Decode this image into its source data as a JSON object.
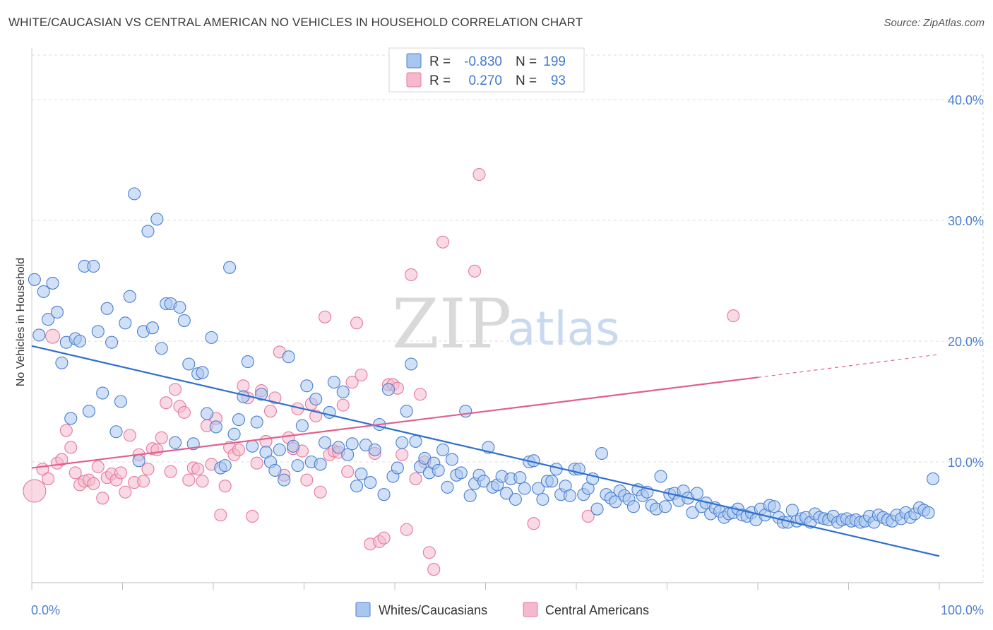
{
  "header": {
    "title": "WHITE/CAUCASIAN VS CENTRAL AMERICAN NO VEHICLES IN HOUSEHOLD CORRELATION CHART",
    "source": "Source: ZipAtlas.com"
  },
  "watermark": {
    "zip": "ZIP",
    "atlas": "atlas"
  },
  "colors": {
    "blue": "#4a7fd0",
    "blue_fill": "#a9c6ef",
    "blue_line": "#2f6fcf",
    "pink": "#e8789c",
    "pink_fill": "#f4b9cc",
    "pink_line": "#e0608c",
    "grid": "#dddddd"
  },
  "legend": {
    "rows": [
      {
        "r_label": "R =",
        "r_value": "-0.830",
        "n_label": "N =",
        "n_value": "199",
        "color": "blue"
      },
      {
        "r_label": "R =",
        "r_value": "0.270",
        "n_label": "N =",
        "n_value": "93",
        "color": "pink"
      }
    ]
  },
  "bottom_legend": [
    {
      "label": "Whites/Caucasians",
      "color": "blue"
    },
    {
      "label": "Central Americans",
      "color": "pink"
    }
  ],
  "chart_data": {
    "type": "scatter",
    "title": "WHITE/CAUCASIAN VS CENTRAL AMERICAN NO VEHICLES IN HOUSEHOLD CORRELATION CHART",
    "xlabel": "",
    "ylabel": "No Vehicles in Household",
    "xlim": [
      0,
      100
    ],
    "ylim": [
      0,
      42
    ],
    "x_tick_labels": [
      "0.0%",
      "100.0%"
    ],
    "y_ticks": [
      10,
      20,
      30,
      40
    ],
    "y_tick_labels": [
      "10.0%",
      "20.0%",
      "30.0%",
      "40.0%"
    ],
    "grid": true,
    "legend_position": "top-center",
    "series": [
      {
        "name": "Whites/Caucasians",
        "r": -0.83,
        "n": 199,
        "trend": {
          "x0": 0,
          "y0": 19.6,
          "x1": 100,
          "y1": 2.2
        },
        "points": [
          [
            0.3,
            25.1
          ],
          [
            0.8,
            20.5
          ],
          [
            1.3,
            24.1
          ],
          [
            1.8,
            21.8
          ],
          [
            2.3,
            24.8
          ],
          [
            2.8,
            22.4
          ],
          [
            3.3,
            18.2
          ],
          [
            3.8,
            19.9
          ],
          [
            4.3,
            13.6
          ],
          [
            4.8,
            20.2
          ],
          [
            5.3,
            20.0
          ],
          [
            5.8,
            26.2
          ],
          [
            6.3,
            14.2
          ],
          [
            6.8,
            26.2
          ],
          [
            7.3,
            20.8
          ],
          [
            7.8,
            15.7
          ],
          [
            8.3,
            22.7
          ],
          [
            8.8,
            19.9
          ],
          [
            9.3,
            12.5
          ],
          [
            9.8,
            15.0
          ],
          [
            10.3,
            21.5
          ],
          [
            10.8,
            23.7
          ],
          [
            11.3,
            32.2
          ],
          [
            11.8,
            10.1
          ],
          [
            12.3,
            20.8
          ],
          [
            12.8,
            29.1
          ],
          [
            13.3,
            21.1
          ],
          [
            13.8,
            30.1
          ],
          [
            14.3,
            19.4
          ],
          [
            14.8,
            23.1
          ],
          [
            15.3,
            23.1
          ],
          [
            15.8,
            11.6
          ],
          [
            16.3,
            22.8
          ],
          [
            16.8,
            21.7
          ],
          [
            17.3,
            18.1
          ],
          [
            17.8,
            11.5
          ],
          [
            18.3,
            17.3
          ],
          [
            18.8,
            17.4
          ],
          [
            19.3,
            14.0
          ],
          [
            19.8,
            20.3
          ],
          [
            20.3,
            12.9
          ],
          [
            20.8,
            9.5
          ],
          [
            21.3,
            9.7
          ],
          [
            21.8,
            26.1
          ],
          [
            22.3,
            12.3
          ],
          [
            22.8,
            13.5
          ],
          [
            23.3,
            15.4
          ],
          [
            23.8,
            18.3
          ],
          [
            24.3,
            11.3
          ],
          [
            24.8,
            13.3
          ],
          [
            25.3,
            15.6
          ],
          [
            25.8,
            10.8
          ],
          [
            26.3,
            10.0
          ],
          [
            26.8,
            9.3
          ],
          [
            27.3,
            11.0
          ],
          [
            27.8,
            8.5
          ],
          [
            28.3,
            18.7
          ],
          [
            28.8,
            11.3
          ],
          [
            29.3,
            9.7
          ],
          [
            29.8,
            13.0
          ],
          [
            30.3,
            16.3
          ],
          [
            30.8,
            10.0
          ],
          [
            31.3,
            15.2
          ],
          [
            31.8,
            9.8
          ],
          [
            32.3,
            11.6
          ],
          [
            32.8,
            14.1
          ],
          [
            33.3,
            16.6
          ],
          [
            33.8,
            11.2
          ],
          [
            34.3,
            15.8
          ],
          [
            34.8,
            10.6
          ],
          [
            35.3,
            11.5
          ],
          [
            35.8,
            8.0
          ],
          [
            36.3,
            9.0
          ],
          [
            36.8,
            11.4
          ],
          [
            37.3,
            8.3
          ],
          [
            37.8,
            11.0
          ],
          [
            38.3,
            13.1
          ],
          [
            38.8,
            7.3
          ],
          [
            39.3,
            16.0
          ],
          [
            39.8,
            8.8
          ],
          [
            40.3,
            9.5
          ],
          [
            40.8,
            11.6
          ],
          [
            41.3,
            14.2
          ],
          [
            41.8,
            18.1
          ],
          [
            42.3,
            11.7
          ],
          [
            42.8,
            9.6
          ],
          [
            43.3,
            10.3
          ],
          [
            43.8,
            9.1
          ],
          [
            44.3,
            9.9
          ],
          [
            44.8,
            9.3
          ],
          [
            45.3,
            11.0
          ],
          [
            45.8,
            7.9
          ],
          [
            46.3,
            10.2
          ],
          [
            46.8,
            8.9
          ],
          [
            47.3,
            9.1
          ],
          [
            47.8,
            14.2
          ],
          [
            48.3,
            7.2
          ],
          [
            48.8,
            8.2
          ],
          [
            49.3,
            8.9
          ],
          [
            49.8,
            8.4
          ],
          [
            50.3,
            11.2
          ],
          [
            50.8,
            7.9
          ],
          [
            51.3,
            8.1
          ],
          [
            51.8,
            8.8
          ],
          [
            52.3,
            7.4
          ],
          [
            52.8,
            8.6
          ],
          [
            53.3,
            6.9
          ],
          [
            53.8,
            8.7
          ],
          [
            54.3,
            7.8
          ],
          [
            54.8,
            10.0
          ],
          [
            55.3,
            10.1
          ],
          [
            55.8,
            7.8
          ],
          [
            56.3,
            6.9
          ],
          [
            56.8,
            8.4
          ],
          [
            57.3,
            8.4
          ],
          [
            57.8,
            9.4
          ],
          [
            58.3,
            7.3
          ],
          [
            58.8,
            8.0
          ],
          [
            59.3,
            7.2
          ],
          [
            59.8,
            9.4
          ],
          [
            60.3,
            9.4
          ],
          [
            60.8,
            7.3
          ],
          [
            61.3,
            7.8
          ],
          [
            61.8,
            8.6
          ],
          [
            62.3,
            6.1
          ],
          [
            62.8,
            10.7
          ],
          [
            63.3,
            7.3
          ],
          [
            63.8,
            7.0
          ],
          [
            64.3,
            6.7
          ],
          [
            64.8,
            7.6
          ],
          [
            65.3,
            7.2
          ],
          [
            65.8,
            6.9
          ],
          [
            66.3,
            6.3
          ],
          [
            66.8,
            7.7
          ],
          [
            67.3,
            7.2
          ],
          [
            67.8,
            7.5
          ],
          [
            68.3,
            6.4
          ],
          [
            68.8,
            6.1
          ],
          [
            69.3,
            8.8
          ],
          [
            69.8,
            6.3
          ],
          [
            70.3,
            7.3
          ],
          [
            70.8,
            7.4
          ],
          [
            71.3,
            6.8
          ],
          [
            71.8,
            7.6
          ],
          [
            72.3,
            7.0
          ],
          [
            72.8,
            5.8
          ],
          [
            73.3,
            7.4
          ],
          [
            73.8,
            6.3
          ],
          [
            74.3,
            6.6
          ],
          [
            74.8,
            5.7
          ],
          [
            75.3,
            6.2
          ],
          [
            75.8,
            5.9
          ],
          [
            76.3,
            5.4
          ],
          [
            76.8,
            5.7
          ],
          [
            77.3,
            5.8
          ],
          [
            77.8,
            6.1
          ],
          [
            78.3,
            5.6
          ],
          [
            78.8,
            5.5
          ],
          [
            79.3,
            5.8
          ],
          [
            79.8,
            5.2
          ],
          [
            80.3,
            6.1
          ],
          [
            80.8,
            5.6
          ],
          [
            81.3,
            6.4
          ],
          [
            81.8,
            6.3
          ],
          [
            82.3,
            5.4
          ],
          [
            82.8,
            5.0
          ],
          [
            83.3,
            5.0
          ],
          [
            83.8,
            6.0
          ],
          [
            84.3,
            5.1
          ],
          [
            84.8,
            5.3
          ],
          [
            85.3,
            5.4
          ],
          [
            85.8,
            5.0
          ],
          [
            86.3,
            5.7
          ],
          [
            86.8,
            5.4
          ],
          [
            87.3,
            5.3
          ],
          [
            87.8,
            5.2
          ],
          [
            88.3,
            5.5
          ],
          [
            88.8,
            5.0
          ],
          [
            89.3,
            5.2
          ],
          [
            89.8,
            5.3
          ],
          [
            90.3,
            5.1
          ],
          [
            90.8,
            5.2
          ],
          [
            91.3,
            5.0
          ],
          [
            91.8,
            5.1
          ],
          [
            92.3,
            5.5
          ],
          [
            92.8,
            5.0
          ],
          [
            93.3,
            5.6
          ],
          [
            93.8,
            5.4
          ],
          [
            94.3,
            5.2
          ],
          [
            94.8,
            5.1
          ],
          [
            95.3,
            5.6
          ],
          [
            95.8,
            5.3
          ],
          [
            96.3,
            5.8
          ],
          [
            96.8,
            5.4
          ],
          [
            97.3,
            5.7
          ],
          [
            97.8,
            6.2
          ],
          [
            98.3,
            6.0
          ],
          [
            98.8,
            5.8
          ],
          [
            99.3,
            8.6
          ]
        ]
      },
      {
        "name": "Central Americans",
        "r": 0.27,
        "n": 93,
        "trend": {
          "x0": 0,
          "y0": 9.5,
          "x1": 80,
          "y1": 17.0,
          "dash_x1": 100,
          "dash_y1": 18.9
        },
        "points": [
          [
            0.3,
            7.6
          ],
          [
            1.2,
            9.4
          ],
          [
            1.8,
            8.6
          ],
          [
            2.3,
            20.4
          ],
          [
            2.8,
            9.9
          ],
          [
            3.3,
            10.2
          ],
          [
            3.8,
            12.6
          ],
          [
            4.3,
            11.2
          ],
          [
            4.8,
            9.1
          ],
          [
            5.3,
            8.1
          ],
          [
            5.8,
            8.4
          ],
          [
            6.3,
            8.5
          ],
          [
            6.8,
            8.2
          ],
          [
            7.3,
            9.6
          ],
          [
            7.8,
            7.0
          ],
          [
            8.3,
            8.7
          ],
          [
            8.8,
            9.0
          ],
          [
            9.3,
            8.5
          ],
          [
            9.8,
            9.1
          ],
          [
            10.3,
            7.5
          ],
          [
            10.8,
            12.2
          ],
          [
            11.3,
            8.3
          ],
          [
            11.8,
            10.6
          ],
          [
            12.3,
            8.4
          ],
          [
            12.8,
            9.4
          ],
          [
            13.3,
            11.1
          ],
          [
            13.8,
            11.0
          ],
          [
            14.3,
            12.0
          ],
          [
            14.8,
            14.9
          ],
          [
            15.3,
            9.2
          ],
          [
            15.8,
            16.0
          ],
          [
            16.3,
            14.6
          ],
          [
            16.8,
            14.1
          ],
          [
            17.3,
            8.5
          ],
          [
            17.8,
            9.5
          ],
          [
            18.3,
            9.4
          ],
          [
            18.8,
            8.4
          ],
          [
            19.3,
            13.0
          ],
          [
            19.8,
            9.8
          ],
          [
            20.3,
            13.6
          ],
          [
            20.8,
            5.6
          ],
          [
            21.3,
            8.0
          ],
          [
            21.8,
            11.2
          ],
          [
            22.3,
            10.6
          ],
          [
            22.8,
            11.0
          ],
          [
            23.3,
            16.3
          ],
          [
            23.8,
            15.3
          ],
          [
            24.3,
            5.5
          ],
          [
            24.8,
            9.9
          ],
          [
            25.3,
            15.9
          ],
          [
            25.8,
            11.7
          ],
          [
            26.3,
            14.2
          ],
          [
            26.8,
            15.3
          ],
          [
            27.3,
            19.1
          ],
          [
            27.8,
            8.9
          ],
          [
            28.3,
            12.0
          ],
          [
            28.8,
            11.1
          ],
          [
            29.3,
            14.4
          ],
          [
            29.8,
            10.9
          ],
          [
            30.3,
            8.5
          ],
          [
            30.8,
            14.8
          ],
          [
            31.3,
            13.8
          ],
          [
            31.8,
            7.5
          ],
          [
            32.3,
            22.0
          ],
          [
            32.8,
            10.6
          ],
          [
            33.3,
            10.9
          ],
          [
            33.8,
            10.8
          ],
          [
            34.3,
            14.7
          ],
          [
            34.8,
            9.2
          ],
          [
            35.3,
            16.6
          ],
          [
            35.8,
            21.5
          ],
          [
            36.3,
            17.2
          ],
          [
            37.3,
            3.2
          ],
          [
            37.8,
            10.7
          ],
          [
            38.3,
            3.4
          ],
          [
            38.8,
            3.7
          ],
          [
            39.3,
            16.4
          ],
          [
            39.8,
            16.4
          ],
          [
            40.3,
            16.1
          ],
          [
            40.8,
            10.6
          ],
          [
            41.3,
            4.4
          ],
          [
            41.8,
            25.5
          ],
          [
            42.3,
            8.6
          ],
          [
            42.8,
            15.6
          ],
          [
            43.3,
            10.0
          ],
          [
            43.8,
            2.5
          ],
          [
            44.3,
            1.1
          ],
          [
            45.3,
            28.2
          ],
          [
            48.8,
            25.8
          ],
          [
            49.3,
            33.8
          ],
          [
            55.3,
            4.9
          ],
          [
            61.3,
            5.5
          ],
          [
            77.3,
            22.1
          ]
        ]
      }
    ]
  }
}
